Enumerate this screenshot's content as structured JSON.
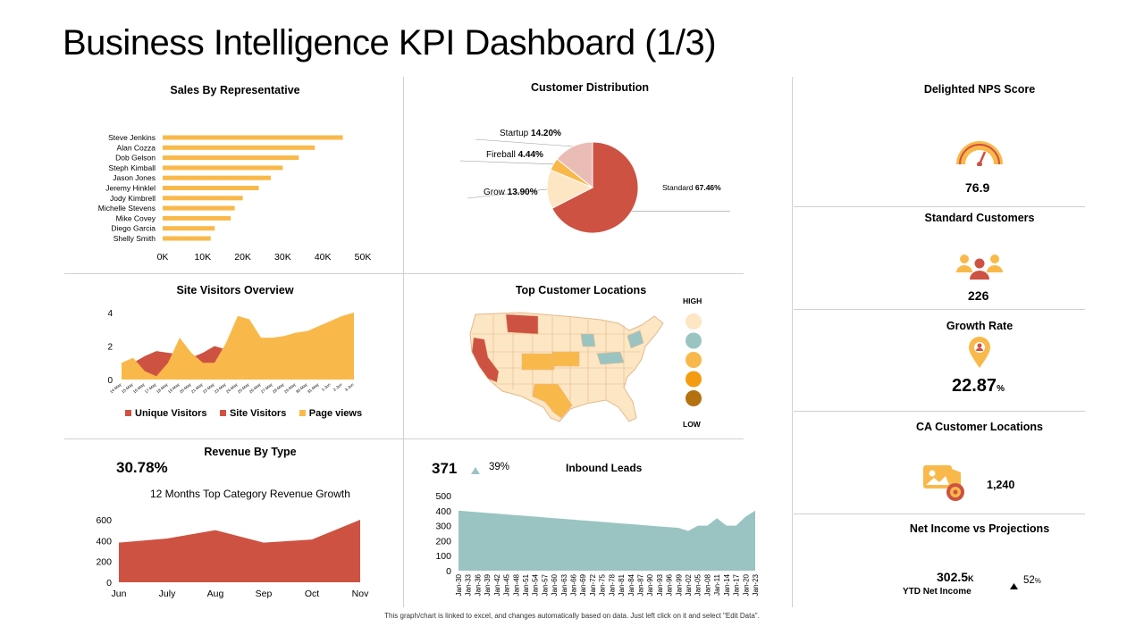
{
  "page": {
    "title": "Business Intelligence KPI Dashboard (1/3)",
    "footer": "This graph/chart is linked to excel, and changes automatically based on data. Just left click on it and select \"Edit Data\"."
  },
  "colors": {
    "yellow": "#f9b94a",
    "red": "#cd5242",
    "teal": "#9ac4c2",
    "cream": "#fde6c4",
    "pink": "#eabcb6",
    "orange": "#f39c12",
    "brown": "#b5700f"
  },
  "chart_data": [
    {
      "id": "sales",
      "type": "bar",
      "orientation": "horizontal",
      "title": "Sales By Representative",
      "categories": [
        "Steve Jenkins",
        "Alan Cozza",
        "Dob Gelson",
        "Steph Kimball",
        "Jason Jones",
        "Jeremy Hinklel",
        "Jody Kimbrell",
        "Michelle Stevens",
        "Mike Covey",
        "Diego Garcia",
        "Shelly Smith"
      ],
      "values": [
        45000,
        38000,
        34000,
        30000,
        27000,
        24000,
        20000,
        18000,
        17000,
        13000,
        12000
      ],
      "xlim": [
        0,
        50000
      ],
      "xticks": [
        "0K",
        "10K",
        "20K",
        "30K",
        "40K",
        "50K"
      ]
    },
    {
      "id": "distribution",
      "type": "pie",
      "title": "Customer Distribution",
      "slices": [
        {
          "name": "Standard",
          "value": 67.46,
          "label": "67.46%"
        },
        {
          "name": "Grow",
          "value": 13.9,
          "label": "13.90%"
        },
        {
          "name": "Fireball",
          "value": 4.44,
          "label": "4.44%"
        },
        {
          "name": "Startup",
          "value": 14.2,
          "label": "14.20%"
        }
      ]
    },
    {
      "id": "visitors",
      "type": "area",
      "title": "Site Visitors Overview",
      "ylim": [
        0,
        4
      ],
      "yticks": [
        "0",
        "2",
        "4"
      ],
      "x": [
        "14-May",
        "15-May",
        "16-May",
        "17-May",
        "18-May",
        "19-May",
        "20-May",
        "21-May",
        "22-May",
        "23-May",
        "24-May",
        "25-May",
        "26-May",
        "27-May",
        "28-May",
        "29-May",
        "30-May",
        "31-May",
        "1-Jun",
        "2-Jun",
        "3-Jun"
      ],
      "series": [
        {
          "name": "Unique Visitors",
          "values": [
            0.3,
            0.5,
            0.8,
            1.1,
            1.3,
            1.2,
            1.1,
            1.0,
            0.9,
            1.0,
            1.1,
            1.2,
            1.1,
            1.0,
            1.1,
            1.2,
            1.1,
            1.0,
            1.2,
            1.3,
            1.4
          ]
        },
        {
          "name": "Site Visitors",
          "values": [
            1.0,
            1.0,
            1.4,
            1.7,
            1.6,
            1.5,
            1.3,
            1.6,
            2.0,
            1.8,
            1.4,
            1.6,
            1.8,
            1.5,
            1.4,
            1.6,
            1.7,
            1.8,
            2.0,
            2.6,
            3.0
          ]
        },
        {
          "name": "Page views",
          "values": [
            1.0,
            1.3,
            0.5,
            0.2,
            1.0,
            2.5,
            1.6,
            1.0,
            1.0,
            2.2,
            3.8,
            3.6,
            2.5,
            2.5,
            2.6,
            2.8,
            2.9,
            3.2,
            3.5,
            3.8,
            4.0
          ]
        }
      ]
    },
    {
      "id": "revenue",
      "type": "area",
      "title": "Revenue By Type",
      "subtitle": "12 Months Top Category Revenue Growth",
      "big_value": "30.78%",
      "x": [
        "Jun",
        "July",
        "Aug",
        "Sep",
        "Oct",
        "Nov"
      ],
      "ylim": [
        0,
        600
      ],
      "yticks": [
        "0",
        "200",
        "400",
        "600"
      ],
      "values": [
        380,
        420,
        500,
        380,
        410,
        600
      ]
    },
    {
      "id": "leads",
      "type": "area",
      "title": "Inbound  Leads",
      "big_value": "371",
      "change": "39%",
      "ylim": [
        0,
        500
      ],
      "yticks": [
        "0",
        "100",
        "200",
        "300",
        "400",
        "500"
      ],
      "x": [
        "Jan-30",
        "Jan-33",
        "Jan-36",
        "Jan-39",
        "Jan-42",
        "Jan-45",
        "Jan-48",
        "Jan-51",
        "Jan-54",
        "Jan-57",
        "Jan-60",
        "Jan-63",
        "Jan-66",
        "Jan-69",
        "Jan-72",
        "Jan-75",
        "Jan-78",
        "Jan-81",
        "Jan-84",
        "Jan-87",
        "Jan-90",
        "Jan-93",
        "Jan-96",
        "Jan-99",
        "Jan-02",
        "Jan-05",
        "Jan-08",
        "Jan-11",
        "Jan-14",
        "Jan-17",
        "Jan-20",
        "Jan-23"
      ],
      "values": [
        400,
        395,
        390,
        385,
        380,
        375,
        370,
        365,
        360,
        355,
        350,
        345,
        340,
        335,
        330,
        325,
        320,
        315,
        310,
        305,
        300,
        295,
        290,
        285,
        265,
        300,
        300,
        350,
        300,
        300,
        360,
        400
      ]
    }
  ],
  "map": {
    "title": "Top Customer Locations",
    "high": "HIGH",
    "low": "LOW",
    "scale_colors": [
      "#fde6c4",
      "#9ac4c2",
      "#f9b94a",
      "#f39c12",
      "#b5700f"
    ]
  },
  "kpis": {
    "nps": {
      "title": "Delighted NPS Score",
      "value": "76.9"
    },
    "standard": {
      "title": "Standard Customers",
      "value": "226"
    },
    "growth": {
      "title": "Growth Rate",
      "value": "22.87",
      "unit": "%"
    },
    "ca": {
      "title": "CA Customer Locations",
      "value": "1,240"
    },
    "net": {
      "title": "Net Income vs Projections",
      "value": "302.5",
      "unit": "K",
      "sub": "YTD Net Income",
      "change": "52",
      "change_unit": "%"
    }
  },
  "icons": {
    "gauge": "gauge-icon",
    "people": "people-icon",
    "pin": "location-pin-icon",
    "map_pin": "map-location-icon",
    "up": "triangle-up-icon"
  }
}
